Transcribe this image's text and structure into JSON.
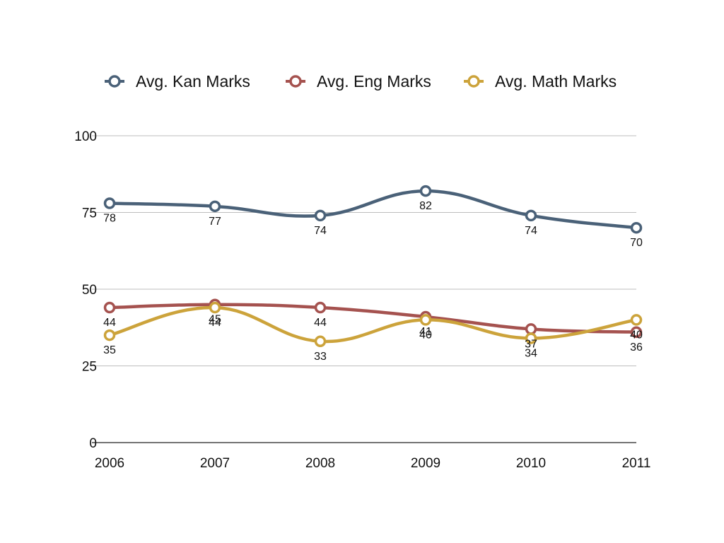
{
  "chart_data": {
    "type": "line",
    "categories": [
      "2006",
      "2007",
      "2008",
      "2009",
      "2010",
      "2011"
    ],
    "y_ticks": [
      "0",
      "25",
      "50",
      "75",
      "100"
    ],
    "ylim": [
      0,
      100
    ],
    "grid": true,
    "legend_placement": "top",
    "series": [
      {
        "name": "Avg. Kan Marks",
        "color": "#4a6178",
        "values": [
          78,
          77,
          74,
          82,
          74,
          70
        ],
        "labels": [
          "78",
          "77",
          "74",
          "82",
          "74",
          "70"
        ]
      },
      {
        "name": "Avg. Eng Marks",
        "color": "#a5524f",
        "values": [
          44,
          45,
          44,
          41,
          37,
          36
        ],
        "labels": [
          "44",
          "45",
          "44",
          "41",
          "37",
          "36"
        ]
      },
      {
        "name": "Avg. Math Marks",
        "color": "#cca33b",
        "values": [
          35,
          44,
          33,
          40,
          34,
          40
        ],
        "labels": [
          "35",
          "44",
          "33",
          "40",
          "34",
          "40"
        ]
      }
    ]
  }
}
